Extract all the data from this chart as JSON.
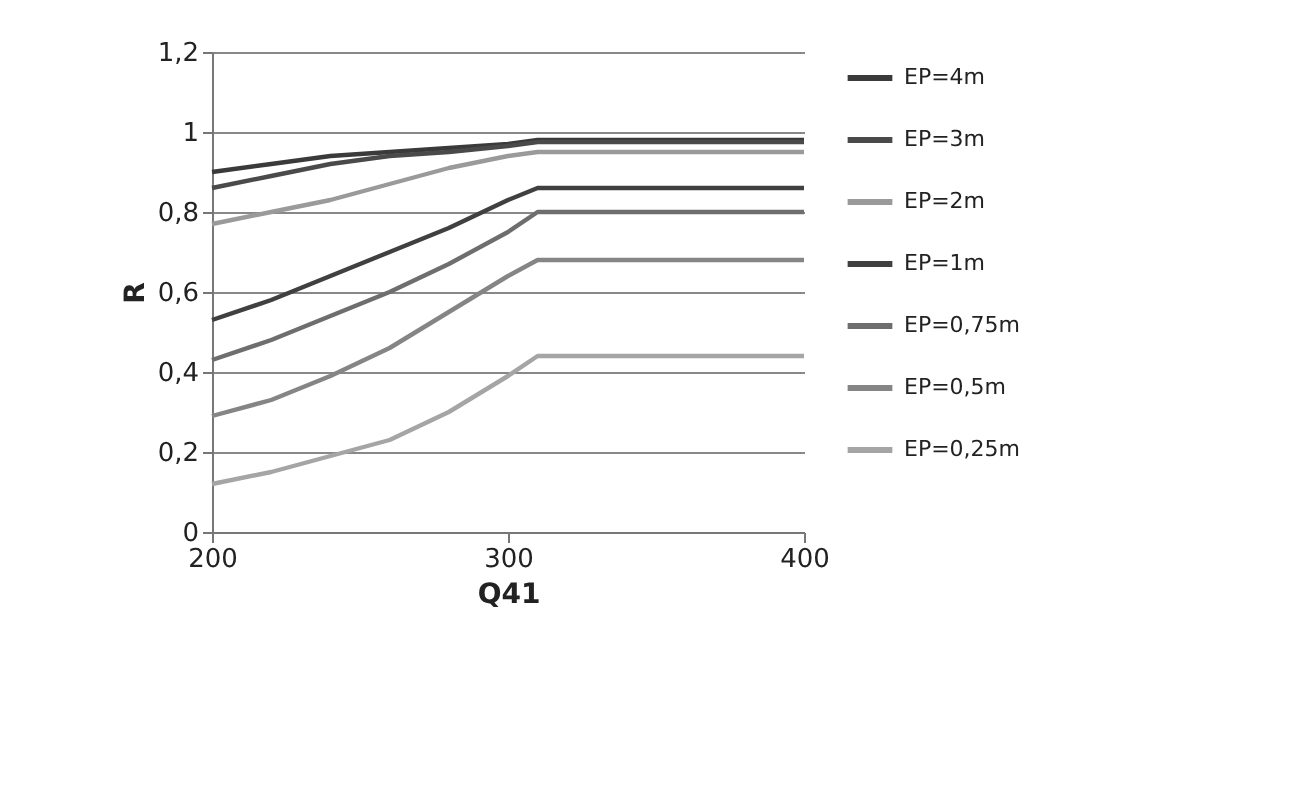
{
  "chart_data": {
    "type": "line",
    "xlabel": "Q41",
    "ylabel": "R",
    "x": [
      200,
      220,
      240,
      260,
      280,
      300,
      310,
      400
    ],
    "series": [
      {
        "name": "EP=4m",
        "color": "#3a3a3a",
        "values": [
          0.9,
          0.92,
          0.94,
          0.95,
          0.96,
          0.97,
          0.98,
          0.98
        ]
      },
      {
        "name": "EP=3m",
        "color": "#4a4a4a",
        "values": [
          0.86,
          0.89,
          0.92,
          0.94,
          0.95,
          0.965,
          0.975,
          0.975
        ]
      },
      {
        "name": "EP=2m",
        "color": "#9a9a9a",
        "values": [
          0.77,
          0.8,
          0.83,
          0.87,
          0.91,
          0.94,
          0.95,
          0.95
        ]
      },
      {
        "name": "EP=1m",
        "color": "#404040",
        "values": [
          0.53,
          0.58,
          0.64,
          0.7,
          0.76,
          0.83,
          0.86,
          0.86
        ]
      },
      {
        "name": "EP=0,75m",
        "color": "#6e6e6e",
        "values": [
          0.43,
          0.48,
          0.54,
          0.6,
          0.67,
          0.75,
          0.8,
          0.8
        ]
      },
      {
        "name": "EP=0,5m",
        "color": "#858585",
        "values": [
          0.29,
          0.33,
          0.39,
          0.46,
          0.55,
          0.64,
          0.68,
          0.68
        ]
      },
      {
        "name": "EP=0,25m",
        "color": "#a5a5a5",
        "values": [
          0.12,
          0.15,
          0.19,
          0.23,
          0.3,
          0.39,
          0.44,
          0.44
        ]
      }
    ],
    "xlim": [
      200,
      400
    ],
    "xticks": [
      200,
      300,
      400
    ],
    "ylim": [
      0,
      1.2
    ],
    "yticks": [
      0,
      {
        "value": 0.2,
        "label": "0,2"
      },
      {
        "value": 0.4,
        "label": "0,4"
      },
      {
        "value": 0.6,
        "label": "0,6"
      },
      {
        "value": 0.8,
        "label": "0,8"
      },
      1,
      {
        "value": 1.2,
        "label": "1,2"
      }
    ],
    "grid": "y",
    "legend": "right",
    "marker": "none",
    "line_style": "solid"
  }
}
